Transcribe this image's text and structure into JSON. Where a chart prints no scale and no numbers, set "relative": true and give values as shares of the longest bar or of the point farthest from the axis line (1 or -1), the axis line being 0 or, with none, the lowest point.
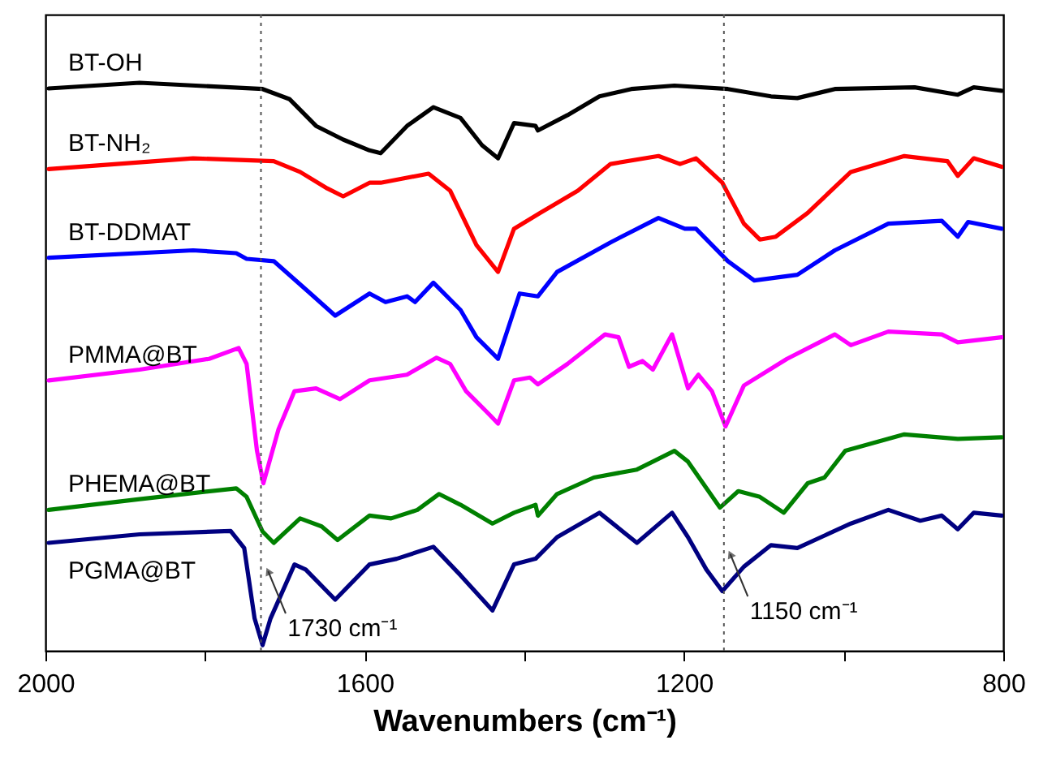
{
  "chart_data": {
    "type": "line",
    "relative": true,
    "xlabel": "Wavenumbers (cm⁻¹)",
    "xlim": [
      2000,
      800
    ],
    "xticks": [
      2000,
      {
        "value": 1800,
        "label": null
      },
      1600,
      {
        "value": 1400,
        "label": null
      },
      1200,
      {
        "value": 1000,
        "label": null
      },
      800
    ],
    "grid": false,
    "marker": "none",
    "line_style": "solid",
    "ref_lines": [
      {
        "axis": "x",
        "value": 1730,
        "color": "#555555",
        "line_style": "dotted"
      },
      {
        "axis": "x",
        "value": 1150,
        "color": "#555555",
        "line_style": "dotted"
      }
    ],
    "annotations": [
      {
        "text": "1730 cm⁻¹",
        "x": 1721,
        "y": 0.14
      },
      {
        "text": "1150 cm⁻¹",
        "x": 1142,
        "y": 0.17
      }
    ],
    "series": [
      {
        "name": "BT-OH",
        "color": "#000000",
        "x": [
          1996,
          1882,
          1728,
          1694,
          1661,
          1627,
          1594,
          1580,
          1547,
          1514,
          1480,
          1453,
          1433,
          1413,
          1386,
          1383,
          1346,
          1306,
          1266,
          1212,
          1145,
          1091,
          1058,
          1011,
          911,
          857,
          837,
          802
        ],
        "values": [
          0.99,
          1.0,
          0.989,
          0.971,
          0.924,
          0.9,
          0.881,
          0.876,
          0.924,
          0.957,
          0.938,
          0.89,
          0.867,
          0.929,
          0.924,
          0.916,
          0.943,
          0.976,
          0.989,
          0.995,
          0.989,
          0.976,
          0.973,
          0.989,
          0.992,
          0.979,
          0.992,
          0.986
        ]
      },
      {
        "name": "BT-NH₂",
        "color": "#ff0000",
        "x": [
          1996,
          1815,
          1714,
          1681,
          1647,
          1627,
          1594,
          1580,
          1520,
          1493,
          1460,
          1433,
          1413,
          1380,
          1333,
          1292,
          1232,
          1205,
          1185,
          1152,
          1125,
          1105,
          1085,
          1045,
          991,
          924,
          870,
          857,
          837,
          802
        ],
        "values": [
          0.848,
          0.867,
          0.862,
          0.843,
          0.814,
          0.8,
          0.824,
          0.824,
          0.84,
          0.81,
          0.714,
          0.667,
          0.743,
          0.771,
          0.81,
          0.857,
          0.871,
          0.857,
          0.867,
          0.824,
          0.752,
          0.724,
          0.729,
          0.771,
          0.843,
          0.871,
          0.862,
          0.836,
          0.867,
          0.852
        ]
      },
      {
        "name": "BT-DDMAT",
        "color": "#0000ff",
        "x": [
          1996,
          1815,
          1761,
          1748,
          1714,
          1668,
          1637,
          1594,
          1574,
          1547,
          1537,
          1514,
          1480,
          1460,
          1433,
          1406,
          1383,
          1359,
          1292,
          1232,
          1199,
          1185,
          1145,
          1112,
          1058,
          1011,
          944,
          877,
          857,
          844,
          802
        ],
        "values": [
          0.692,
          0.705,
          0.7,
          0.69,
          0.686,
          0.629,
          0.59,
          0.629,
          0.614,
          0.624,
          0.614,
          0.648,
          0.6,
          0.552,
          0.514,
          0.629,
          0.624,
          0.667,
          0.719,
          0.762,
          0.743,
          0.743,
          0.686,
          0.652,
          0.662,
          0.705,
          0.752,
          0.757,
          0.729,
          0.755,
          0.743
        ]
      },
      {
        "name": "PMMA@BT",
        "color": "#ff00ff",
        "x": [
          1996,
          1882,
          1795,
          1758,
          1748,
          1735,
          1727,
          1708,
          1688,
          1661,
          1631,
          1594,
          1547,
          1510,
          1493,
          1473,
          1446,
          1433,
          1413,
          1393,
          1383,
          1346,
          1299,
          1282,
          1269,
          1252,
          1239,
          1215,
          1195,
          1182,
          1165,
          1148,
          1125,
          1071,
          1011,
          991,
          944,
          877,
          857,
          802
        ],
        "values": [
          0.476,
          0.495,
          0.514,
          0.533,
          0.505,
          0.352,
          0.295,
          0.39,
          0.457,
          0.462,
          0.443,
          0.476,
          0.486,
          0.516,
          0.505,
          0.457,
          0.419,
          0.4,
          0.476,
          0.481,
          0.469,
          0.505,
          0.557,
          0.552,
          0.5,
          0.51,
          0.495,
          0.557,
          0.462,
          0.486,
          0.457,
          0.395,
          0.467,
          0.514,
          0.557,
          0.538,
          0.562,
          0.557,
          0.543,
          0.552
        ]
      },
      {
        "name": "PHEMA@BT",
        "color": "#008000",
        "x": [
          1996,
          1882,
          1761,
          1748,
          1728,
          1714,
          1681,
          1654,
          1634,
          1594,
          1567,
          1534,
          1507,
          1480,
          1440,
          1413,
          1386,
          1383,
          1359,
          1313,
          1259,
          1239,
          1212,
          1195,
          1155,
          1132,
          1105,
          1075,
          1045,
          1024,
          998,
          924,
          857,
          802
        ],
        "values": [
          0.248,
          0.267,
          0.286,
          0.271,
          0.21,
          0.19,
          0.233,
          0.219,
          0.195,
          0.238,
          0.233,
          0.248,
          0.276,
          0.257,
          0.224,
          0.243,
          0.257,
          0.238,
          0.276,
          0.305,
          0.319,
          0.333,
          0.352,
          0.333,
          0.252,
          0.281,
          0.271,
          0.243,
          0.295,
          0.305,
          0.352,
          0.381,
          0.373,
          0.376
        ]
      },
      {
        "name": "PGMA@BT",
        "color": "#000080",
        "x": [
          1996,
          1882,
          1768,
          1751,
          1738,
          1728,
          1718,
          1688,
          1674,
          1637,
          1594,
          1560,
          1514,
          1480,
          1440,
          1413,
          1386,
          1359,
          1306,
          1259,
          1215,
          1195,
          1172,
          1152,
          1125,
          1091,
          1058,
          991,
          944,
          904,
          877,
          857,
          837,
          802
        ],
        "values": [
          0.19,
          0.205,
          0.211,
          0.181,
          0.057,
          0.01,
          0.057,
          0.152,
          0.143,
          0.09,
          0.152,
          0.162,
          0.183,
          0.133,
          0.071,
          0.152,
          0.162,
          0.2,
          0.243,
          0.19,
          0.243,
          0.2,
          0.143,
          0.105,
          0.148,
          0.186,
          0.181,
          0.224,
          0.248,
          0.229,
          0.238,
          0.214,
          0.243,
          0.238
        ]
      }
    ]
  }
}
